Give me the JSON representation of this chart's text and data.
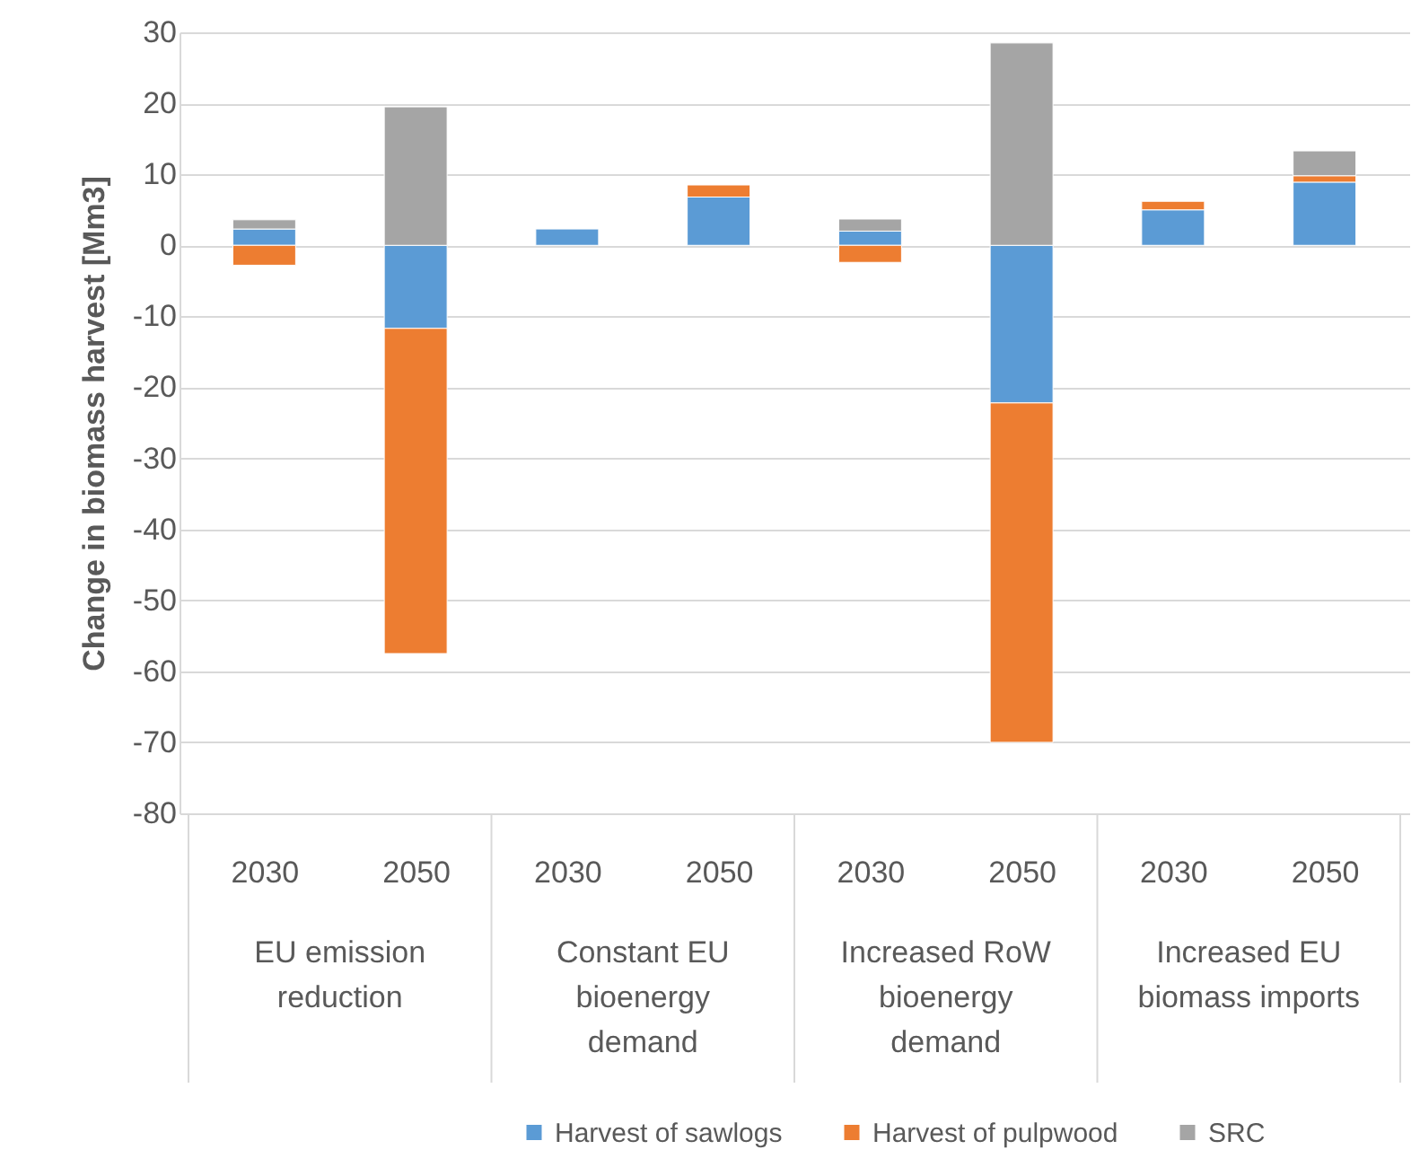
{
  "chart_data": {
    "type": "bar",
    "stacked": true,
    "ylabel": "Change in biomass harvest [Mm3]",
    "categories": [
      "2030",
      "2050",
      "2030",
      "2050",
      "2030",
      "2050",
      "2030",
      "2050"
    ],
    "annotations": [
      "EU emission\nreduction",
      "Constant EU\nbioenergy\ndemand",
      "Increased RoW\nbioenergy\ndemand",
      "Increased EU\nbiomass imports"
    ],
    "series": [
      {
        "name": "Harvest of sawlogs",
        "color": "#5b9bd5",
        "values": [
          2.3,
          -11.7,
          2.3,
          6.8,
          2.0,
          -22.2,
          5.0,
          8.9
        ]
      },
      {
        "name": "Harvest of pulpwood",
        "color": "#ed7d31",
        "values": [
          -2.8,
          -45.8,
          null,
          1.7,
          -2.4,
          -47.8,
          1.2,
          0.9
        ]
      },
      {
        "name": "SRC",
        "color": "#a5a5a5",
        "values": [
          1.3,
          19.5,
          null,
          null,
          1.7,
          28.5,
          null,
          3.5
        ]
      }
    ],
    "ylim": [
      -80,
      30
    ],
    "yticks": [
      -80,
      -70,
      -60,
      -50,
      -40,
      -30,
      -20,
      -10,
      0,
      10,
      20,
      30
    ],
    "grid": "y",
    "legend": "bottom"
  }
}
